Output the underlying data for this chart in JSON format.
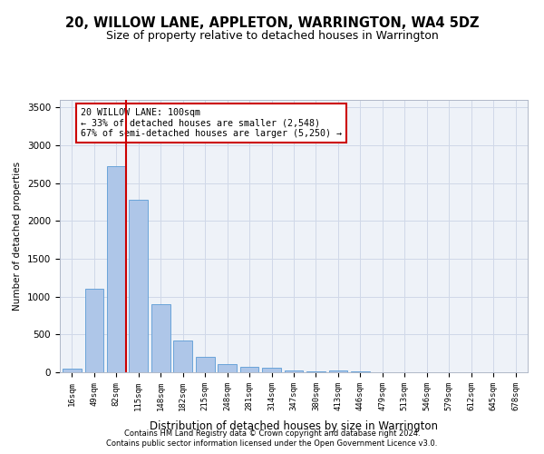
{
  "title": "20, WILLOW LANE, APPLETON, WARRINGTON, WA4 5DZ",
  "subtitle": "Size of property relative to detached houses in Warrington",
  "xlabel": "Distribution of detached houses by size in Warrington",
  "ylabel": "Number of detached properties",
  "categories": [
    "16sqm",
    "49sqm",
    "82sqm",
    "115sqm",
    "148sqm",
    "182sqm",
    "215sqm",
    "248sqm",
    "281sqm",
    "314sqm",
    "347sqm",
    "380sqm",
    "413sqm",
    "446sqm",
    "479sqm",
    "513sqm",
    "546sqm",
    "579sqm",
    "612sqm",
    "645sqm",
    "678sqm"
  ],
  "values": [
    50,
    1100,
    2720,
    2280,
    900,
    420,
    200,
    110,
    75,
    55,
    30,
    15,
    20,
    10,
    5,
    3,
    2,
    1,
    0,
    0,
    0
  ],
  "bar_color": "#aec6e8",
  "bar_edge_color": "#5b9bd5",
  "vline_color": "#cc0000",
  "annotation_title": "20 WILLOW LANE: 100sqm",
  "annotation_line1": "← 33% of detached houses are smaller (2,548)",
  "annotation_line2": "67% of semi-detached houses are larger (5,250) →",
  "annotation_box_color": "#ffffff",
  "annotation_box_edge": "#cc0000",
  "ylim": [
    0,
    3600
  ],
  "yticks": [
    0,
    500,
    1000,
    1500,
    2000,
    2500,
    3000,
    3500
  ],
  "grid_color": "#d0d8e8",
  "bg_color": "#eef2f8",
  "title_fontsize": 10.5,
  "subtitle_fontsize": 9,
  "footer1": "Contains HM Land Registry data © Crown copyright and database right 2024.",
  "footer2": "Contains public sector information licensed under the Open Government Licence v3.0."
}
